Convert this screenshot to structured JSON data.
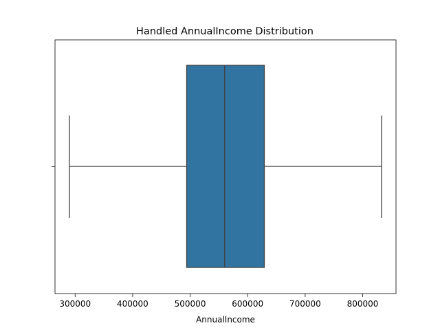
{
  "chart_data": {
    "type": "box",
    "title": "Handled AnnualIncome Distribution",
    "xlabel": "AnnualIncome",
    "ylabel": "",
    "orientation": "horizontal",
    "xlim": [
      265000,
      858000
    ],
    "x_ticks": [
      300000,
      400000,
      500000,
      600000,
      700000,
      800000
    ],
    "x_tick_labels": [
      "300000",
      "400000",
      "500000",
      "600000",
      "700000",
      "800000"
    ],
    "grid": false,
    "box": {
      "min": 290000,
      "q1": 494000,
      "median": 560000,
      "q3": 629000,
      "max": 833000
    },
    "colors": {
      "box_fill": "#3274a1",
      "line": "#3f3f3f",
      "axes": "#000000"
    }
  }
}
